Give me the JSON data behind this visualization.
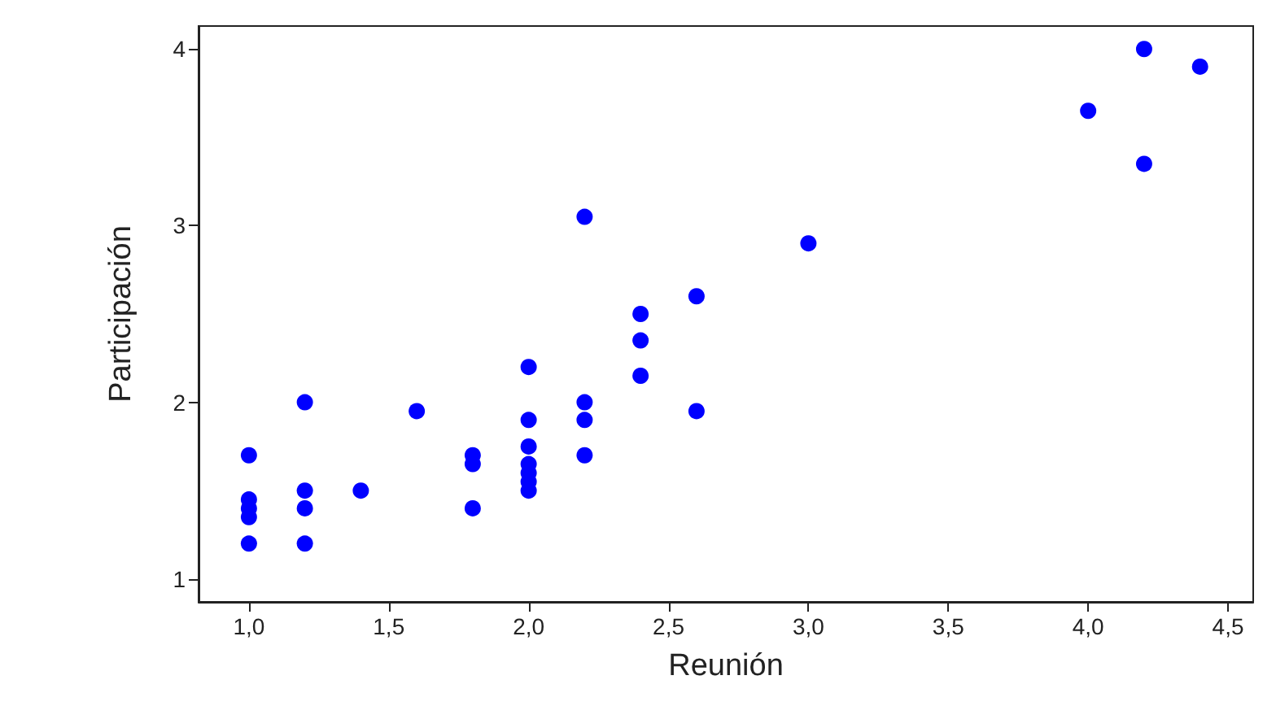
{
  "chart_data": {
    "type": "scatter",
    "xlabel": "Reunión",
    "ylabel": "Participación",
    "x": [
      1.0,
      1.0,
      1.0,
      1.0,
      1.0,
      1.2,
      1.2,
      1.2,
      1.2,
      1.4,
      1.6,
      1.8,
      1.8,
      1.8,
      2.0,
      2.0,
      2.0,
      2.0,
      2.0,
      2.0,
      2.0,
      2.2,
      2.2,
      2.2,
      2.2,
      2.4,
      2.4,
      2.4,
      2.6,
      2.6,
      3.0,
      4.0,
      4.2,
      4.2,
      4.4
    ],
    "series": [
      {
        "color": "#0000ff",
        "values": [
          1.7,
          1.45,
          1.4,
          1.35,
          1.2,
          2.0,
          1.5,
          1.4,
          1.2,
          1.5,
          1.95,
          1.7,
          1.65,
          1.4,
          2.2,
          1.9,
          1.75,
          1.65,
          1.6,
          1.55,
          1.5,
          3.05,
          2.0,
          1.9,
          1.7,
          2.5,
          2.35,
          2.15,
          2.6,
          1.95,
          2.9,
          3.65,
          4.0,
          3.35,
          3.9
        ]
      }
    ],
    "xlim": [
      0.82,
      4.59
    ],
    "ylim": [
      0.87,
      4.13
    ],
    "xticks": [
      {
        "value": 1.0,
        "label": "1,0"
      },
      {
        "value": 1.5,
        "label": "1,5"
      },
      {
        "value": 2.0,
        "label": "2,0"
      },
      {
        "value": 2.5,
        "label": "2,5"
      },
      {
        "value": 3.0,
        "label": "3,0"
      },
      {
        "value": 3.5,
        "label": "3,5"
      },
      {
        "value": 4.0,
        "label": "4,0"
      },
      {
        "value": 4.5,
        "label": "4,5"
      }
    ],
    "yticks": [
      1,
      2,
      3,
      4
    ],
    "marker": "circle",
    "grid": false
  }
}
